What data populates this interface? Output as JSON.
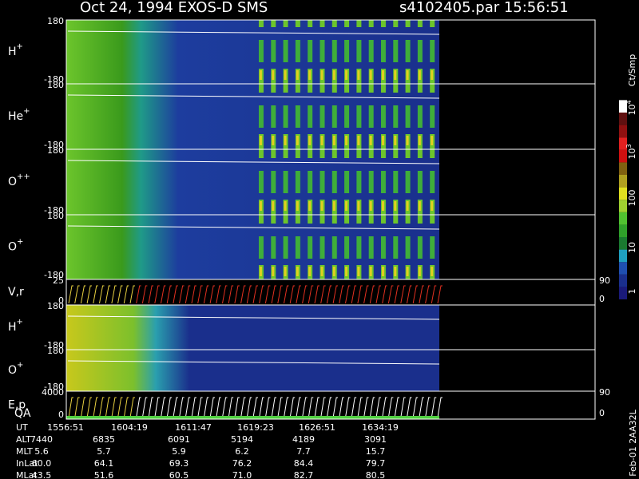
{
  "header": {
    "title": "Oct 24, 1994   EXOS-D SMS",
    "file": "s4102405.par  15:56:51"
  },
  "panels": [
    {
      "label": "H",
      "charge": "+",
      "left_ticks": [
        "180",
        "-180"
      ],
      "right_ticks": []
    },
    {
      "label": "He",
      "charge": "+",
      "left_ticks": [
        "180",
        "-180"
      ],
      "right_ticks": []
    },
    {
      "label": "O",
      "charge": "++",
      "left_ticks": [
        "180",
        "-180"
      ],
      "right_ticks": []
    },
    {
      "label": "O",
      "charge": "+",
      "left_ticks": [
        "180",
        "-180"
      ],
      "right_ticks": []
    },
    {
      "label": "V,r",
      "charge": "",
      "left_ticks": [
        "25",
        "0"
      ],
      "right_ticks": [
        "90",
        "0"
      ]
    },
    {
      "label": "H",
      "charge": "+",
      "left_ticks": [
        "180",
        "-180"
      ],
      "right_ticks": []
    },
    {
      "label": "O",
      "charge": "+",
      "left_ticks": [
        "180",
        "-180"
      ],
      "right_ticks": []
    },
    {
      "label": "E,p",
      "charge": "",
      "left_ticks": [
        "4000",
        "0"
      ],
      "right_ticks": [
        "90",
        "0"
      ]
    }
  ],
  "qa_label": "QA",
  "colorbar": {
    "title": "Ct/Smp",
    "ticks": [
      {
        "base": "10",
        "exp": "4"
      },
      {
        "base": "10",
        "exp": "3"
      },
      {
        "base": "100",
        "exp": ""
      },
      {
        "base": "10",
        "exp": ""
      },
      {
        "base": "1",
        "exp": ""
      }
    ]
  },
  "footer": {
    "rows": [
      {
        "label": "UT",
        "values": [
          "1556:51",
          "1604:19",
          "1611:47",
          "1619:23",
          "1626:51",
          "1634:19"
        ]
      },
      {
        "label": "ALT",
        "values": [
          "7440",
          "6835",
          "6091",
          "5194",
          "4189",
          "3091"
        ]
      },
      {
        "label": "MLT",
        "values": [
          "5.6",
          "5.7",
          "5.9",
          "6.2",
          "7.7",
          "15.7"
        ]
      },
      {
        "label": "InLat",
        "values": [
          "60.0",
          "64.1",
          "69.3",
          "76.2",
          "84.4",
          "79.7"
        ]
      },
      {
        "label": "MLat",
        "values": [
          "43.5",
          "51.6",
          "60.5",
          "71.0",
          "82.7",
          "80.5"
        ]
      }
    ]
  },
  "side_note": "Feb-01 2AA32L"
}
